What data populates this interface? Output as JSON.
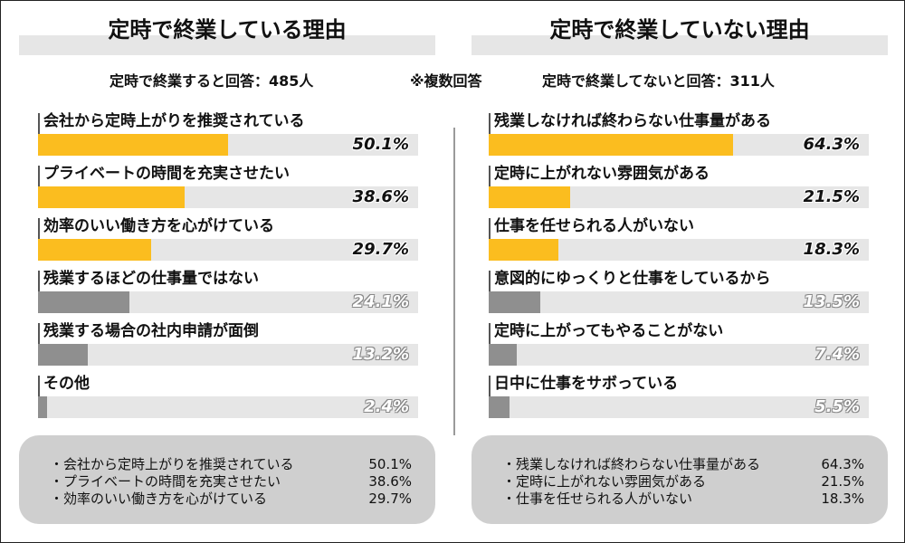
{
  "note": "※複数回答",
  "colors": {
    "highlight": "#fbbd1f",
    "muted": "#8f8f8f",
    "track": "#e6e6e6",
    "summary_bg": "#cfcfcf"
  },
  "chart_data": [
    {
      "type": "bar",
      "orientation": "horizontal",
      "title": "定時で終業している理由",
      "subtitle": "定時で終業すると回答：485人",
      "xlim": [
        0,
        100
      ],
      "categories": [
        "会社から定時上がりを推奨されている",
        "プライベートの時間を充実させたい",
        "効率のいい働き方を心がけている",
        "残業するほどの仕事量ではない",
        "残業する場合の社内申請が面倒",
        "その他"
      ],
      "values": [
        50.1,
        38.6,
        29.7,
        24.1,
        13.2,
        2.4
      ],
      "labels": [
        "50.1%",
        "38.6%",
        "29.7%",
        "24.1%",
        "13.2%",
        "2.4%"
      ],
      "highlighted_top": 3,
      "summary": [
        {
          "text": "・会社から定時上がりを推奨されている",
          "value": "50.1%"
        },
        {
          "text": "・プライベートの時間を充実させたい",
          "value": "38.6%"
        },
        {
          "text": "・効率のいい働き方を心がけている",
          "value": "29.7%"
        }
      ]
    },
    {
      "type": "bar",
      "orientation": "horizontal",
      "title": "定時で終業していない理由",
      "subtitle": "定時で終業してないと回答：311人",
      "xlim": [
        0,
        100
      ],
      "categories": [
        "残業しなければ終わらない仕事量がある",
        "定時に上がれない雰囲気がある",
        "仕事を任せられる人がいない",
        "意図的にゆっくりと仕事をしているから",
        "定時に上がってもやることがない",
        "日中に仕事をサボっている"
      ],
      "values": [
        64.3,
        21.5,
        18.3,
        13.5,
        7.4,
        5.5
      ],
      "labels": [
        "64.3%",
        "21.5%",
        "18.3%",
        "13.5%",
        "7.4%",
        "5.5%"
      ],
      "highlighted_top": 3,
      "summary": [
        {
          "text": "・残業しなければ終わらない仕事量がある",
          "value": "64.3%"
        },
        {
          "text": "・定時に上がれない雰囲気がある",
          "value": "21.5%"
        },
        {
          "text": "・仕事を任せられる人がいない",
          "value": "18.3%"
        }
      ]
    }
  ]
}
